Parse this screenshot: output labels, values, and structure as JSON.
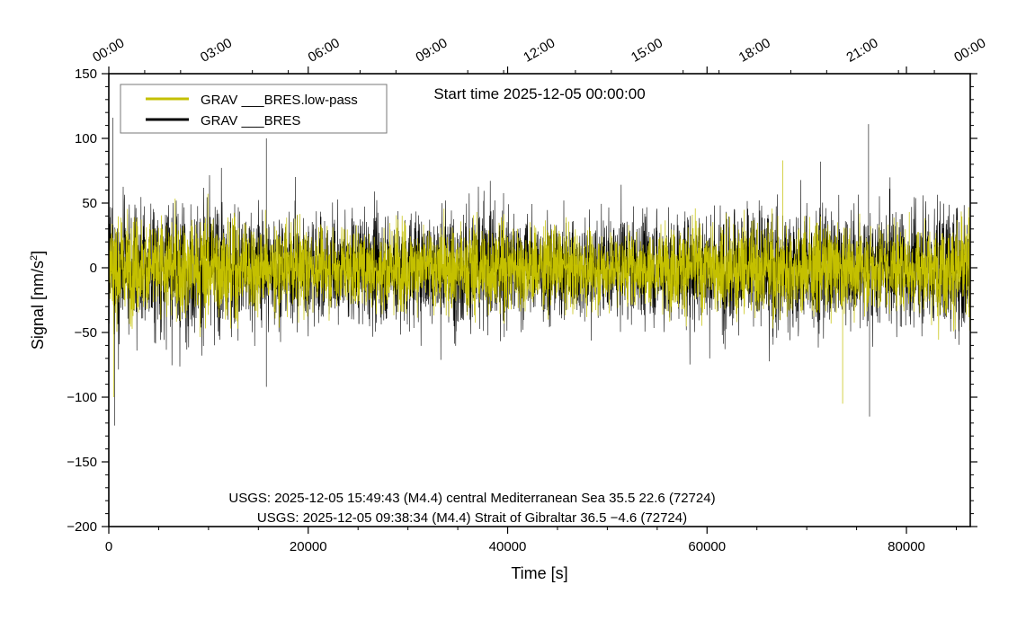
{
  "chart_data": {
    "type": "line",
    "title": "Start time 2025-12-05 00:00:00",
    "xlabel": "Time [s]",
    "ylabel": "Signal [nm/s",
    "ylabel_sup": "2",
    "ylabel_close": "]",
    "xlim": [
      0,
      86400
    ],
    "ylim": [
      -200,
      150
    ],
    "x_ticks": [
      0,
      20000,
      40000,
      60000,
      80000
    ],
    "x_tick_labels": [
      "0",
      "20000",
      "40000",
      "60000",
      "80000"
    ],
    "y_ticks": [
      -200,
      -150,
      -100,
      -50,
      0,
      50,
      100,
      150
    ],
    "y_tick_labels": [
      "−200",
      "−150",
      "−100",
      "−50",
      "0",
      "50",
      "100",
      "150"
    ],
    "top_ticks": [
      0,
      10800,
      21600,
      32400,
      43200,
      54000,
      64800,
      75600,
      86400
    ],
    "top_tick_labels": [
      "00:00",
      "03:00",
      "06:00",
      "09:00",
      "12:00",
      "15:00",
      "18:00",
      "21:00",
      "00:00"
    ],
    "series": [
      {
        "name": "GRAV ___BRES",
        "color": "#000000",
        "typical_envelope": [
          -55,
          55
        ],
        "min": -122,
        "max": 116
      },
      {
        "name": "GRAV ___BRES.low-pass",
        "color": "#c4c000",
        "typical_envelope": [
          -45,
          45
        ],
        "min": -105,
        "max": 83
      }
    ],
    "legend": {
      "position": "top-left",
      "entries": [
        {
          "label": "GRAV ___BRES.low-pass",
          "color": "#c4c000"
        },
        {
          "label": "GRAV ___BRES",
          "color": "#000000"
        }
      ]
    },
    "annotations": [
      "USGS: 2025-12-05 15:49:43 (M4.4) central Mediterranean Sea 35.5 22.6 (72724)",
      "USGS: 2025-12-05 09:38:34 (M4.4) Strait of Gibraltar 36.5 −4.6 (72724)"
    ]
  }
}
